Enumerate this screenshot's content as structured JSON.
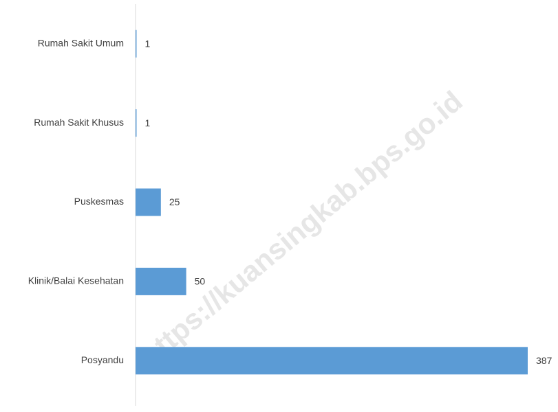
{
  "chart_data": {
    "type": "barh",
    "categories": [
      "Rumah Sakit Umum",
      "Rumah Sakit Khusus",
      "Puskesmas",
      "Klinik/Balai Kesehatan",
      "Posyandu"
    ],
    "values": [
      1,
      1,
      25,
      50,
      387
    ],
    "color": "#5b9bd5",
    "xlim": [
      0,
      387
    ],
    "watermark": "https://kuansingkab.bps.go.id"
  }
}
